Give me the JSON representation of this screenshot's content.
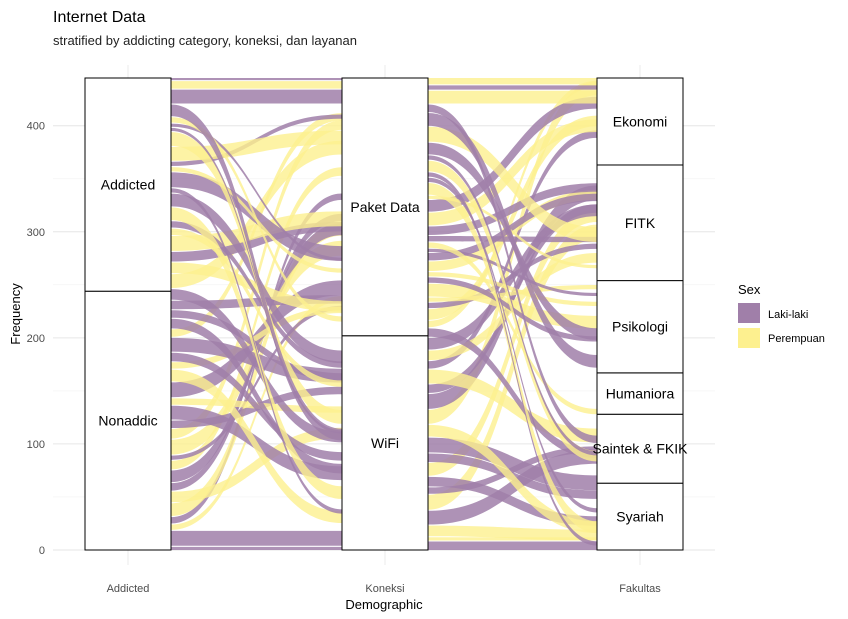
{
  "chart_data": {
    "type": "alluvial",
    "title": "Internet Data",
    "subtitle": "stratified by addicting category, koneksi, dan layanan",
    "xlabel": "Demographic",
    "ylabel": "Frequency",
    "ylim": [
      0,
      445
    ],
    "y_ticks": [
      0,
      100,
      200,
      300,
      400
    ],
    "grid": true,
    "axes": [
      "Addicted",
      "Koneksi",
      "Fakultas"
    ],
    "strata": [
      {
        "axis": "Addicted",
        "items": [
          {
            "label": "Nonaddic",
            "value": 244
          },
          {
            "label": "Addicted",
            "value": 201
          }
        ]
      },
      {
        "axis": "Koneksi",
        "items": [
          {
            "label": "WiFi",
            "value": 202
          },
          {
            "label": "Paket Data",
            "value": 243
          }
        ]
      },
      {
        "axis": "Fakultas",
        "items": [
          {
            "label": "Syariah",
            "value": 63
          },
          {
            "label": "Saintek & FKIK",
            "value": 65
          },
          {
            "label": "Humaniora",
            "value": 39
          },
          {
            "label": "Psikologi",
            "value": 87
          },
          {
            "label": "FITK",
            "value": 109
          },
          {
            "label": "Ekonomi",
            "value": 82
          }
        ]
      }
    ],
    "legend": {
      "title": "Sex",
      "position": "right",
      "entries": [
        {
          "label": "Laki-laki",
          "color": "#a07fa9"
        },
        {
          "label": "Perempuan",
          "color": "#fdf08f"
        }
      ]
    }
  }
}
